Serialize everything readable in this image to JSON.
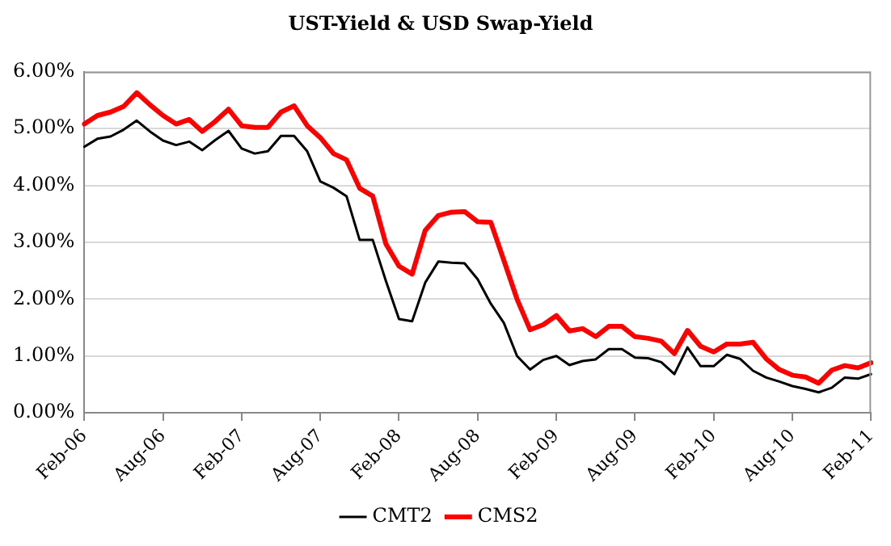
{
  "chart_data": {
    "type": "line",
    "title": "UST-Yield & USD Swap-Yield",
    "categories": [
      "Feb-06",
      null,
      null,
      null,
      null,
      null,
      "Aug-06",
      null,
      null,
      null,
      null,
      null,
      "Feb-07",
      null,
      null,
      null,
      null,
      null,
      "Aug-07",
      null,
      null,
      null,
      null,
      null,
      "Feb-08",
      null,
      null,
      null,
      null,
      null,
      "Aug-08",
      null,
      null,
      null,
      null,
      null,
      "Feb-09",
      null,
      null,
      null,
      null,
      null,
      "Aug-09",
      null,
      null,
      null,
      null,
      null,
      "Feb-10",
      null,
      null,
      null,
      null,
      null,
      "Aug-10",
      null,
      null,
      null,
      null,
      null,
      "Feb-11"
    ],
    "series": [
      {
        "name": "CMT2",
        "color": "#000000",
        "values": [
          4.68,
          4.82,
          4.86,
          4.98,
          5.14,
          4.95,
          4.79,
          4.71,
          4.77,
          4.62,
          4.8,
          4.96,
          4.65,
          4.56,
          4.6,
          4.87,
          4.87,
          4.6,
          4.07,
          3.96,
          3.81,
          3.04,
          3.04,
          2.32,
          1.65,
          1.61,
          2.29,
          2.66,
          2.64,
          2.63,
          2.35,
          1.92,
          1.58,
          1.0,
          0.76,
          0.93,
          1.0,
          0.84,
          0.91,
          0.94,
          1.12,
          1.12,
          0.97,
          0.96,
          0.89,
          0.68,
          1.15,
          0.82,
          0.82,
          1.02,
          0.95,
          0.74,
          0.62,
          0.55,
          0.47,
          0.42,
          0.36,
          0.44,
          0.62,
          0.6,
          0.68
        ]
      },
      {
        "name": "CMS2",
        "color": "#ff0000",
        "values": [
          5.08,
          5.23,
          5.29,
          5.39,
          5.63,
          5.42,
          5.23,
          5.08,
          5.16,
          4.95,
          5.13,
          5.34,
          5.05,
          5.02,
          5.02,
          5.29,
          5.4,
          5.05,
          4.84,
          4.56,
          4.45,
          3.95,
          3.81,
          2.97,
          2.58,
          2.44,
          3.21,
          3.47,
          3.53,
          3.54,
          3.36,
          3.35,
          2.68,
          2.0,
          1.46,
          1.55,
          1.71,
          1.44,
          1.48,
          1.34,
          1.52,
          1.52,
          1.34,
          1.31,
          1.26,
          1.04,
          1.45,
          1.17,
          1.07,
          1.21,
          1.21,
          1.24,
          0.95,
          0.76,
          0.66,
          0.63,
          0.52,
          0.75,
          0.83,
          0.79,
          0.88
        ]
      }
    ],
    "ylim": [
      0,
      6
    ],
    "yticks": [
      {
        "value": 0,
        "label": "0.00%"
      },
      {
        "value": 1,
        "label": "1.00%"
      },
      {
        "value": 2,
        "label": "2.00%"
      },
      {
        "value": 3,
        "label": "3.00%"
      },
      {
        "value": 4,
        "label": "4.00%"
      },
      {
        "value": 5,
        "label": "5.00%"
      },
      {
        "value": 6,
        "label": "6.00%"
      }
    ],
    "grid": "y",
    "legend": "bottom",
    "marker": "none",
    "line_style": "solid"
  }
}
